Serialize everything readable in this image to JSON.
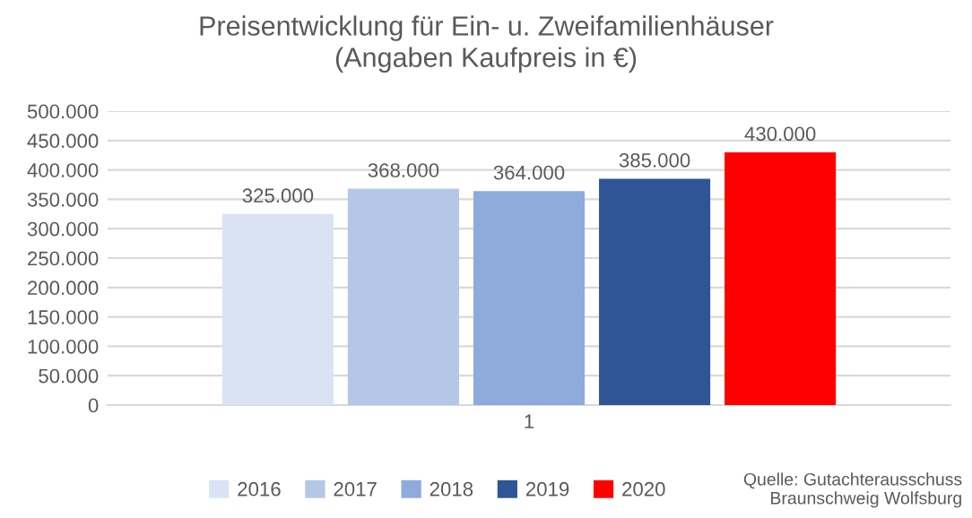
{
  "chart_data": {
    "type": "bar",
    "title": "Preisentwicklung für Ein- u. Zweifamilienhäuser\n(Angaben Kaufpreis in €)",
    "categories": [
      "1"
    ],
    "series": [
      {
        "name": "2016",
        "color": "#dae3f3",
        "values": [
          325000
        ]
      },
      {
        "name": "2017",
        "color": "#b4c7e7",
        "values": [
          368000
        ]
      },
      {
        "name": "2018",
        "color": "#8faadc",
        "values": [
          364000
        ]
      },
      {
        "name": "2019",
        "color": "#2f5597",
        "values": [
          385000
        ]
      },
      {
        "name": "2020",
        "color": "#ff0000",
        "values": [
          430000
        ]
      }
    ],
    "value_labels": [
      [
        "325.000"
      ],
      [
        "368.000"
      ],
      [
        "364.000"
      ],
      [
        "385.000"
      ],
      [
        "430.000"
      ]
    ],
    "ylim": [
      0,
      500000
    ],
    "yticks": [
      {
        "value": 0,
        "label": "0"
      },
      {
        "value": 50000,
        "label": "50.000"
      },
      {
        "value": 100000,
        "label": "100.000"
      },
      {
        "value": 150000,
        "label": "150.000"
      },
      {
        "value": 200000,
        "label": "200.000"
      },
      {
        "value": 250000,
        "label": "250.000"
      },
      {
        "value": 300000,
        "label": "300.000"
      },
      {
        "value": 350000,
        "label": "350.000"
      },
      {
        "value": 400000,
        "label": "400.000"
      },
      {
        "value": 450000,
        "label": "450.000"
      },
      {
        "value": 500000,
        "label": "500.000"
      }
    ],
    "grid": "y",
    "legend": "bottom",
    "annotations": [
      "Quelle: Gutachterausschuss\nBraunschweig Wolfsburg"
    ]
  }
}
